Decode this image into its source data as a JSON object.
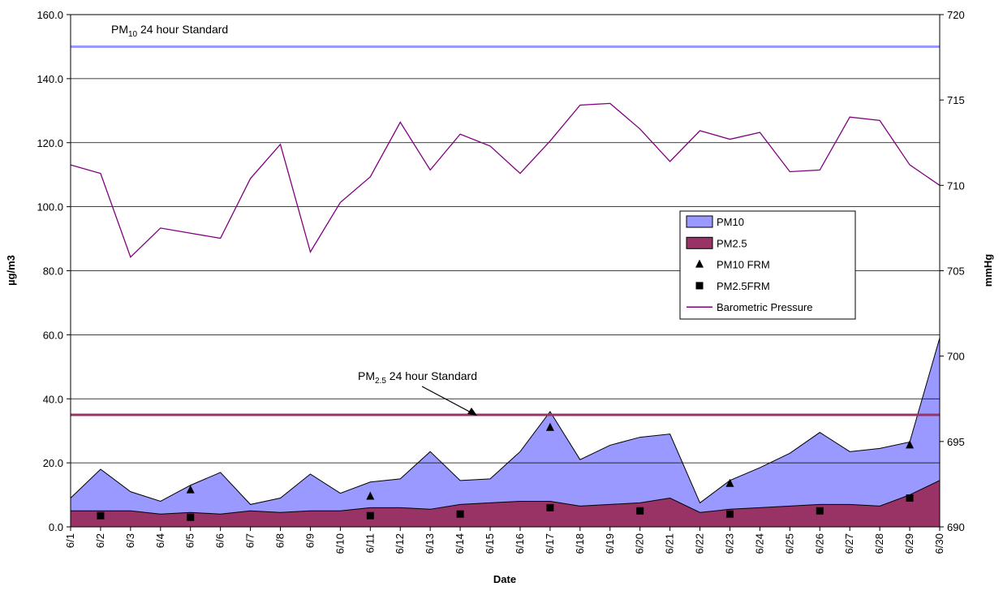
{
  "chart_data": {
    "type": "combo",
    "x_label": "Date",
    "y_label": "µg/m3",
    "y2_label": "mmHg",
    "categories": [
      "6/1",
      "6/2",
      "6/3",
      "6/4",
      "6/5",
      "6/6",
      "6/7",
      "6/8",
      "6/9",
      "6/10",
      "6/11",
      "6/12",
      "6/13",
      "6/14",
      "6/15",
      "6/16",
      "6/17",
      "6/18",
      "6/19",
      "6/20",
      "6/21",
      "6/22",
      "6/23",
      "6/24",
      "6/25",
      "6/26",
      "6/27",
      "6/28",
      "6/29",
      "6/30"
    ],
    "ylim": [
      0,
      160
    ],
    "yticks": [
      {
        "value": 0,
        "label": "0.0"
      },
      {
        "value": 20,
        "label": "20.0"
      },
      {
        "value": 40,
        "label": "40.0"
      },
      {
        "value": 60,
        "label": "60.0"
      },
      {
        "value": 80,
        "label": "80.0"
      },
      {
        "value": 100,
        "label": "100.0"
      },
      {
        "value": 120,
        "label": "120.0"
      },
      {
        "value": 140,
        "label": "140.0"
      },
      {
        "value": 160,
        "label": "160.0"
      }
    ],
    "y2lim": [
      690,
      720
    ],
    "y2ticks": [
      690,
      695,
      700,
      705,
      710,
      715,
      720
    ],
    "grid": true,
    "legend": "right",
    "series": [
      {
        "name": "PM10",
        "type": "area",
        "color": "#9999ff",
        "values": [
          9,
          18,
          11,
          8,
          13,
          17,
          7,
          9,
          16.5,
          10.5,
          14,
          15,
          23.5,
          14.5,
          15,
          23.5,
          36,
          21,
          25.5,
          28,
          29,
          7.5,
          14.5,
          18.5,
          23,
          29.5,
          23.5,
          24.5,
          26.5,
          59
        ]
      },
      {
        "name": "PM2.5",
        "type": "area",
        "color": "#993366",
        "values": [
          5,
          5,
          5,
          4,
          4.5,
          4,
          5,
          4.5,
          5,
          5,
          6,
          6,
          5.5,
          7,
          7.5,
          8,
          8,
          6.5,
          7,
          7.5,
          9,
          4.5,
          5.5,
          6,
          6.5,
          7,
          7,
          6.5,
          10,
          14.5
        ]
      },
      {
        "name": "PM10 FRM",
        "type": "triangle",
        "color": "#000000",
        "values": [
          null,
          null,
          null,
          null,
          11.5,
          null,
          null,
          null,
          null,
          null,
          9.5,
          null,
          null,
          null,
          null,
          null,
          31,
          null,
          null,
          null,
          null,
          null,
          13.5,
          null,
          null,
          null,
          null,
          null,
          25.5,
          null
        ]
      },
      {
        "name": "PM2.5FRM",
        "type": "square",
        "color": "#000000",
        "values": [
          null,
          3.5,
          null,
          null,
          3,
          null,
          null,
          null,
          null,
          null,
          3.5,
          null,
          null,
          4,
          null,
          null,
          6,
          null,
          null,
          5,
          null,
          null,
          4,
          null,
          null,
          5,
          null,
          null,
          9,
          null
        ]
      },
      {
        "name": "Barometric Pressure",
        "type": "line",
        "axis": "y2",
        "color": "#800080",
        "values": [
          711.2,
          710.7,
          705.8,
          707.5,
          707.2,
          706.9,
          710.4,
          712.4,
          706.1,
          709.0,
          710.5,
          713.7,
          710.9,
          713.0,
          712.3,
          710.7,
          712.6,
          714.7,
          714.8,
          713.3,
          711.4,
          713.2,
          712.7,
          713.1,
          710.8,
          710.9,
          714.0,
          713.8,
          711.2,
          710.0
        ]
      }
    ],
    "annotations": [
      {
        "label": [
          "PM",
          "10",
          " 24 hour Standard"
        ],
        "value": 150,
        "color": "#9999ff"
      },
      {
        "label": [
          "PM",
          "2.5",
          " 24 hour Standard"
        ],
        "value": 35,
        "color": "#993366"
      }
    ]
  }
}
